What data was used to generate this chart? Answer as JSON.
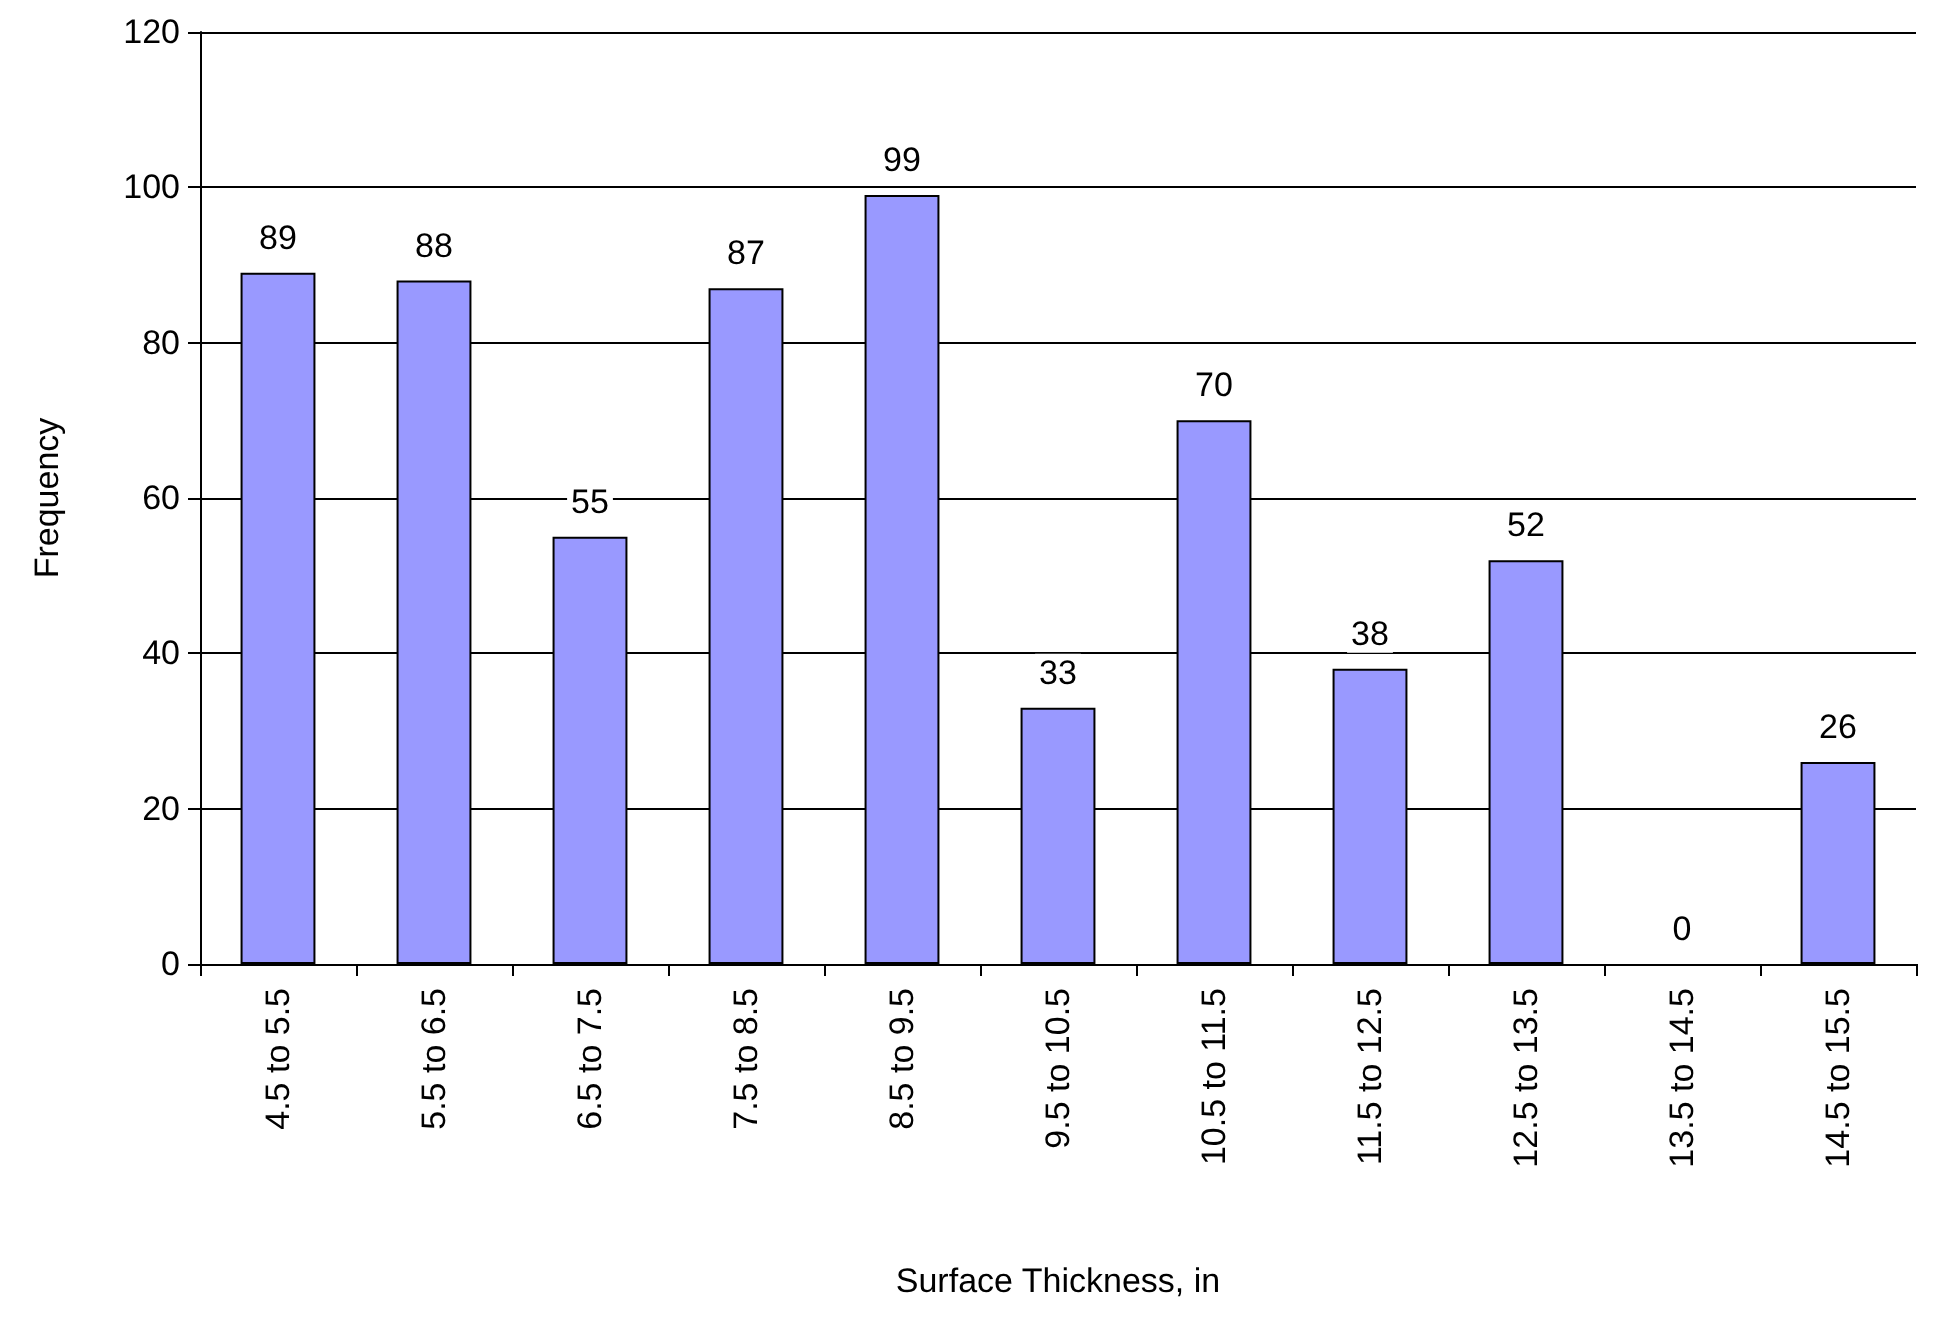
{
  "chart_data": {
    "type": "bar",
    "xlabel": "Surface Thickness, in",
    "ylabel": "Frequency",
    "categories": [
      "4.5 to 5.5",
      "5.5 to 6.5",
      "6.5 to 7.5",
      "7.5 to 8.5",
      "8.5 to 9.5",
      "9.5 to 10.5",
      "10.5 to 11.5",
      "11.5 to 12.5",
      "12.5 to 13.5",
      "13.5 to 14.5",
      "14.5 to 15.5"
    ],
    "values": [
      89,
      88,
      55,
      87,
      99,
      33,
      70,
      38,
      52,
      0,
      26
    ],
    "color": "#9999ff",
    "ylim": [
      0,
      120
    ],
    "yticks": [
      0,
      20,
      40,
      60,
      80,
      100,
      120
    ],
    "grid": "y",
    "data_labels": true
  }
}
